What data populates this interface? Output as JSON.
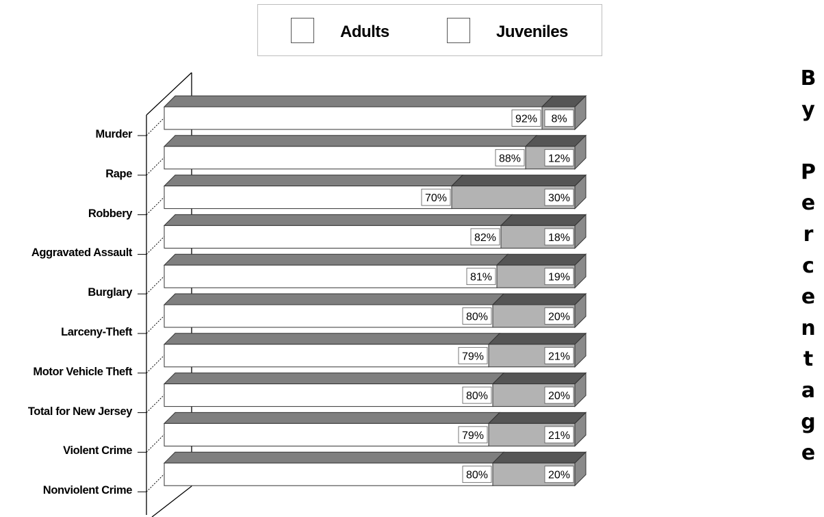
{
  "side_text": "B\ny\n\nP\ne\nr\nc\ne\nn\nt\na\ng\ne",
  "colors": {
    "adult_face": "#ffffff",
    "juvenile_face": "#b3b3b3",
    "adult_top": "#7f7f7f",
    "juvenile_top": "#555555",
    "end_cap": "#8a8a8a",
    "outline": "#333333"
  },
  "chart_data": {
    "type": "bar",
    "orientation": "horizontal",
    "stacked": true,
    "percent": true,
    "categories": [
      "Murder",
      "Rape",
      "Robbery",
      "Aggravated Assault",
      "Burglary",
      "Larceny-Theft",
      "Motor Vehicle Theft",
      "Total for New Jersey",
      "Violent Crime",
      "Nonviolent Crime"
    ],
    "series": [
      {
        "name": "Adults",
        "values": [
          92,
          88,
          70,
          82,
          81,
          80,
          79,
          80,
          79,
          80
        ],
        "labels": [
          "92%",
          "88%",
          "70%",
          "82%",
          "81%",
          "80%",
          "79%",
          "80%",
          "79%",
          "80%"
        ]
      },
      {
        "name": "Juveniles",
        "values": [
          8,
          12,
          30,
          18,
          19,
          20,
          21,
          20,
          21,
          20
        ],
        "labels": [
          "8%",
          "12%",
          "30%",
          "18%",
          "19%",
          "20%",
          "21%",
          "20%",
          "21%",
          "20%"
        ]
      }
    ],
    "xlim": [
      0,
      100
    ],
    "legend_placement": "top"
  }
}
